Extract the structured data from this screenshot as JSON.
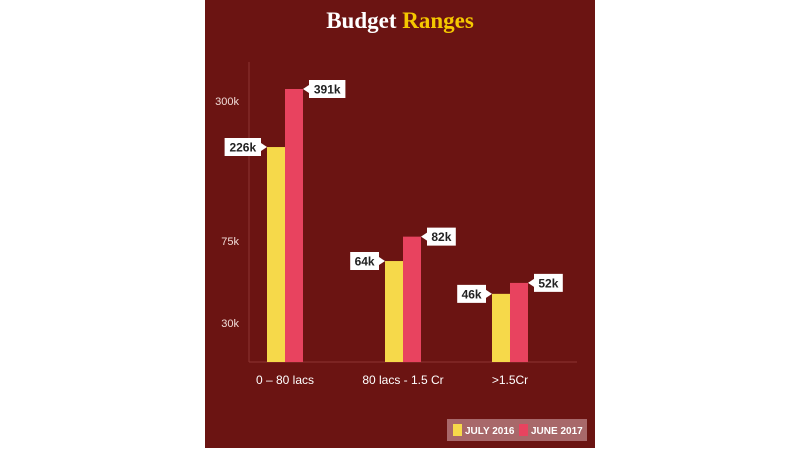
{
  "title": {
    "part1": "Budget",
    "part2": "Ranges"
  },
  "colors": {
    "background": "#6b1412",
    "series1": "#f6d94a",
    "series2": "#e8435f",
    "accent": "#f5c800"
  },
  "chart_data": {
    "type": "bar",
    "title": "Budget Ranges",
    "xlabel": "",
    "ylabel": "",
    "categories": [
      "0 – 80 lacs",
      "80 lacs - 1.5 Cr",
      ">1.5Cr"
    ],
    "series": [
      {
        "name": "JULY 2016",
        "values": [
          226,
          64,
          46
        ],
        "labels": [
          "226k",
          "64k",
          "46k"
        ]
      },
      {
        "name": "JUNE 2017",
        "values": [
          391,
          82,
          52
        ],
        "labels": [
          "391k",
          "82k",
          "52k"
        ]
      }
    ],
    "y_ticks": [
      {
        "value": 30,
        "label": "30k"
      },
      {
        "value": 75,
        "label": "75k"
      },
      {
        "value": 300,
        "label": "300k"
      }
    ],
    "grid": false,
    "legend": "bottom-right"
  }
}
